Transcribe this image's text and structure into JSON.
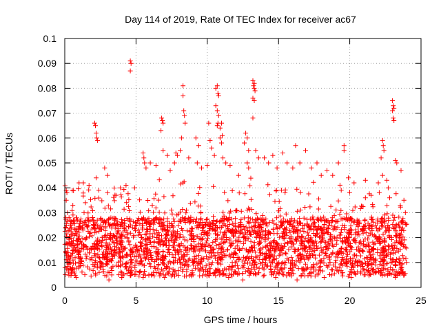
{
  "chart_data": {
    "type": "scatter",
    "title": "Day 114 of 2019, Rate Of TEC Index for receiver ac67",
    "xlabel": "GPS time / hours",
    "ylabel": "ROTI / TECUs",
    "xlim": [
      0,
      25
    ],
    "ylim": [
      0,
      0.1
    ],
    "xticks": [
      0,
      5,
      10,
      15,
      20,
      25
    ],
    "yticks": [
      0,
      0.01,
      0.02,
      0.03,
      0.04,
      0.05,
      0.06,
      0.07,
      0.08,
      0.09,
      0.1
    ],
    "xtick_labels": [
      "0",
      "5",
      "10",
      "15",
      "20",
      "25"
    ],
    "ytick_labels": [
      "0",
      "0.01",
      "0.02",
      "0.03",
      "0.04",
      "0.05",
      "0.06",
      "0.07",
      "0.08",
      "0.09",
      "0.1"
    ],
    "grid": true,
    "marker": "+",
    "color": "#ff0000",
    "data_x_range": [
      0,
      24
    ],
    "points": [
      [
        0.1,
        0.039
      ],
      [
        0.15,
        0.038
      ],
      [
        0.1,
        0.035
      ],
      [
        0.2,
        0.03
      ],
      [
        0.3,
        0.028
      ],
      [
        0.5,
        0.006
      ],
      [
        1.0,
        0.042
      ],
      [
        1.3,
        0.042
      ],
      [
        1.7,
        0.041
      ],
      [
        2.1,
        0.066
      ],
      [
        2.15,
        0.065
      ],
      [
        2.2,
        0.062
      ],
      [
        2.25,
        0.06
      ],
      [
        2.3,
        0.059
      ],
      [
        2.2,
        0.044
      ],
      [
        2.8,
        0.048
      ],
      [
        3.0,
        0.045
      ],
      [
        3.0,
        0.038
      ],
      [
        3.1,
        0.003
      ],
      [
        3.6,
        0.037
      ],
      [
        3.9,
        0.04
      ],
      [
        4.3,
        0.041
      ],
      [
        4.6,
        0.091
      ],
      [
        4.65,
        0.09
      ],
      [
        4.6,
        0.087
      ],
      [
        4.9,
        0.04
      ],
      [
        5.5,
        0.054
      ],
      [
        5.55,
        0.052
      ],
      [
        5.6,
        0.05
      ],
      [
        5.7,
        0.048
      ],
      [
        5.5,
        0.004
      ],
      [
        6.0,
        0.05
      ],
      [
        6.4,
        0.049
      ],
      [
        6.8,
        0.068
      ],
      [
        6.85,
        0.067
      ],
      [
        6.9,
        0.066
      ],
      [
        6.75,
        0.063
      ],
      [
        6.9,
        0.055
      ],
      [
        7.2,
        0.053
      ],
      [
        7.4,
        0.047
      ],
      [
        7.7,
        0.05
      ],
      [
        7.8,
        0.054
      ],
      [
        7.9,
        0.053
      ],
      [
        8.1,
        0.055
      ],
      [
        8.2,
        0.06
      ],
      [
        8.3,
        0.081
      ],
      [
        8.3,
        0.077
      ],
      [
        8.35,
        0.071
      ],
      [
        8.4,
        0.069
      ],
      [
        8.45,
        0.066
      ],
      [
        8.3,
        0.042
      ],
      [
        8.7,
        0.052
      ],
      [
        9.2,
        0.06
      ],
      [
        9.4,
        0.057
      ],
      [
        9.3,
        0.05
      ],
      [
        9.6,
        0.048
      ],
      [
        10.0,
        0.049
      ],
      [
        10.1,
        0.066
      ],
      [
        10.2,
        0.059
      ],
      [
        10.3,
        0.056
      ],
      [
        10.5,
        0.053
      ],
      [
        10.6,
        0.08
      ],
      [
        10.7,
        0.081
      ],
      [
        10.75,
        0.078
      ],
      [
        10.8,
        0.077
      ],
      [
        10.6,
        0.073
      ],
      [
        10.7,
        0.071
      ],
      [
        10.8,
        0.069
      ],
      [
        10.75,
        0.066
      ],
      [
        10.7,
        0.065
      ],
      [
        10.9,
        0.064
      ],
      [
        11.0,
        0.066
      ],
      [
        11.05,
        0.061
      ],
      [
        10.9,
        0.06
      ],
      [
        11.0,
        0.058
      ],
      [
        11.1,
        0.052
      ],
      [
        11.3,
        0.05
      ],
      [
        11.6,
        0.049
      ],
      [
        12.2,
        0.045
      ],
      [
        12.6,
        0.058
      ],
      [
        12.7,
        0.062
      ],
      [
        12.8,
        0.06
      ],
      [
        12.9,
        0.055
      ],
      [
        12.8,
        0.05
      ],
      [
        12.9,
        0.048
      ],
      [
        13.2,
        0.083
      ],
      [
        13.3,
        0.082
      ],
      [
        13.25,
        0.081
      ],
      [
        13.3,
        0.08
      ],
      [
        13.35,
        0.079
      ],
      [
        13.2,
        0.076
      ],
      [
        13.3,
        0.075
      ],
      [
        13.2,
        0.068
      ],
      [
        13.4,
        0.055
      ],
      [
        13.6,
        0.052
      ],
      [
        12.5,
        0.003
      ],
      [
        14.0,
        0.052
      ],
      [
        14.3,
        0.05
      ],
      [
        14.6,
        0.053
      ],
      [
        14.9,
        0.048
      ],
      [
        15.3,
        0.054
      ],
      [
        15.6,
        0.05
      ],
      [
        16.0,
        0.048
      ],
      [
        16.2,
        0.057
      ],
      [
        16.5,
        0.05
      ],
      [
        16.9,
        0.055
      ],
      [
        16.3,
        0.003
      ],
      [
        17.3,
        0.048
      ],
      [
        17.7,
        0.05
      ],
      [
        18.0,
        0.045
      ],
      [
        18.4,
        0.047
      ],
      [
        18.8,
        0.045
      ],
      [
        19.2,
        0.05
      ],
      [
        19.6,
        0.057
      ],
      [
        19.6,
        0.055
      ],
      [
        19.9,
        0.044
      ],
      [
        20.3,
        0.042
      ],
      [
        21.1,
        0.043
      ],
      [
        21.5,
        0.037
      ],
      [
        22.0,
        0.042
      ],
      [
        22.2,
        0.052
      ],
      [
        22.3,
        0.059
      ],
      [
        22.35,
        0.057
      ],
      [
        22.4,
        0.055
      ],
      [
        22.3,
        0.045
      ],
      [
        22.6,
        0.043
      ],
      [
        22.7,
        0.04
      ],
      [
        22.8,
        0.036
      ],
      [
        23.0,
        0.075
      ],
      [
        23.05,
        0.073
      ],
      [
        23.1,
        0.072
      ],
      [
        23.0,
        0.071
      ],
      [
        23.05,
        0.068
      ],
      [
        23.1,
        0.067
      ],
      [
        23.2,
        0.051
      ],
      [
        23.3,
        0.05
      ],
      [
        23.6,
        0.047
      ],
      [
        23.8,
        0.035
      ],
      [
        23.9,
        0.03
      ],
      [
        23.2,
        0.004
      ],
      [
        0.8,
        0.004
      ],
      [
        4.0,
        0.004
      ],
      [
        9.0,
        0.005
      ],
      [
        14.8,
        0.004
      ],
      [
        18.2,
        0.004
      ],
      [
        21.0,
        0.005
      ],
      [
        23.7,
        0.006
      ],
      [
        7.0,
        0.004
      ],
      [
        11.5,
        0.004
      ],
      [
        20.1,
        0.004
      ]
    ]
  }
}
